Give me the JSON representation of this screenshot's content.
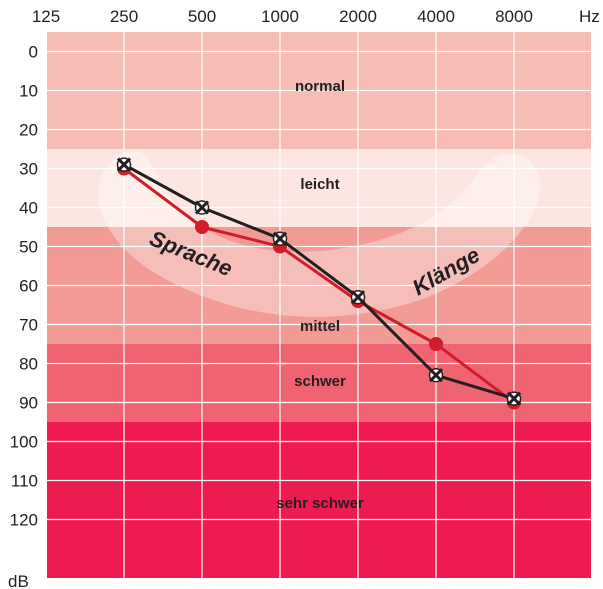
{
  "chart_data": {
    "type": "line",
    "x_unit": "Hz",
    "y_unit": "dB",
    "x_ticks": [
      "125",
      "250",
      "500",
      "1000",
      "2000",
      "4000",
      "8000"
    ],
    "y_ticks": [
      "0",
      "10",
      "20",
      "30",
      "40",
      "50",
      "60",
      "70",
      "80",
      "90",
      "100",
      "110",
      "120"
    ],
    "ylim": [
      -10,
      130
    ],
    "y_inverted": true,
    "grid": true,
    "zones": [
      {
        "label": "normal",
        "from": -10,
        "to": 20,
        "color": "#f7bdb4"
      },
      {
        "label": "leicht",
        "from": 20,
        "to": 40,
        "color": "#fde6e1"
      },
      {
        "label": "mittel",
        "from": 40,
        "to": 70,
        "color": "#f29b94"
      },
      {
        "label": "schwer",
        "from": 70,
        "to": 90,
        "color": "#ef6470"
      },
      {
        "label": "sehr schwer",
        "from": 90,
        "to": 130,
        "color": "#ed1b4f"
      }
    ],
    "arc_labels": [
      "Sprache",
      "Klänge"
    ],
    "series": [
      {
        "marker": "circle",
        "color": "#d21c2a",
        "x": [
          250,
          500,
          1000,
          2000,
          4000,
          8000
        ],
        "y": [
          25,
          40,
          45,
          59,
          70,
          85
        ]
      },
      {
        "marker": "x",
        "color": "#231f20",
        "x": [
          250,
          500,
          1000,
          2000,
          4000,
          8000
        ],
        "y": [
          24,
          35,
          43,
          58,
          78,
          84
        ]
      }
    ]
  }
}
